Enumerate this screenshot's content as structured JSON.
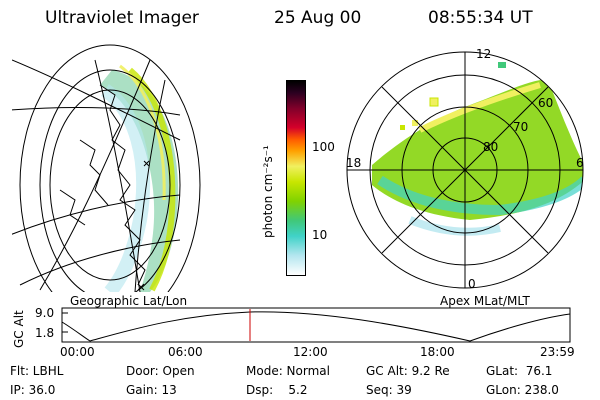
{
  "header": {
    "title": "Ultraviolet Imager",
    "date": "25 Aug 00",
    "time": "08:55:34 UT"
  },
  "panels": {
    "left_caption": "Geographic Lat/Lon",
    "right_caption": "Apex MLat/MLT"
  },
  "colorbar": {
    "unit_label": "photon cm⁻²s⁻¹",
    "ticks": [
      "100",
      "10"
    ],
    "colors": [
      "#000000",
      "#2a0020",
      "#80002a",
      "#d4002a",
      "#ff5a00",
      "#ffa000",
      "#f0f060",
      "#c8e600",
      "#80d200",
      "#40c87a",
      "#40d2c8",
      "#b4e6ef",
      "#ffffff"
    ]
  },
  "polar": {
    "mlt_labels": {
      "top": "12",
      "left": "18",
      "right": "6",
      "bottom": "0"
    },
    "lat_labels": [
      "60",
      "70",
      "80"
    ]
  },
  "altitude_plot": {
    "ylabel": "GC Alt",
    "yticks": [
      "9.0",
      "1.8"
    ],
    "xticks": [
      "00:00",
      "06:00",
      "12:00",
      "18:00",
      "23:59"
    ],
    "marker_color": "#cc0000"
  },
  "info": {
    "row1": {
      "flt": "Flt: LBHL",
      "door": "Door: Open",
      "mode": "Mode: Normal",
      "gcalt": "GC Alt: 9.2 Re",
      "glat": "GLat:  76.1"
    },
    "row2": {
      "ip": "IP: 36.0",
      "gain": "Gain: 13",
      "dsp": "Dsp:    5.2",
      "seq": "Seq: 39",
      "glon": "GLon: 238.0"
    }
  }
}
